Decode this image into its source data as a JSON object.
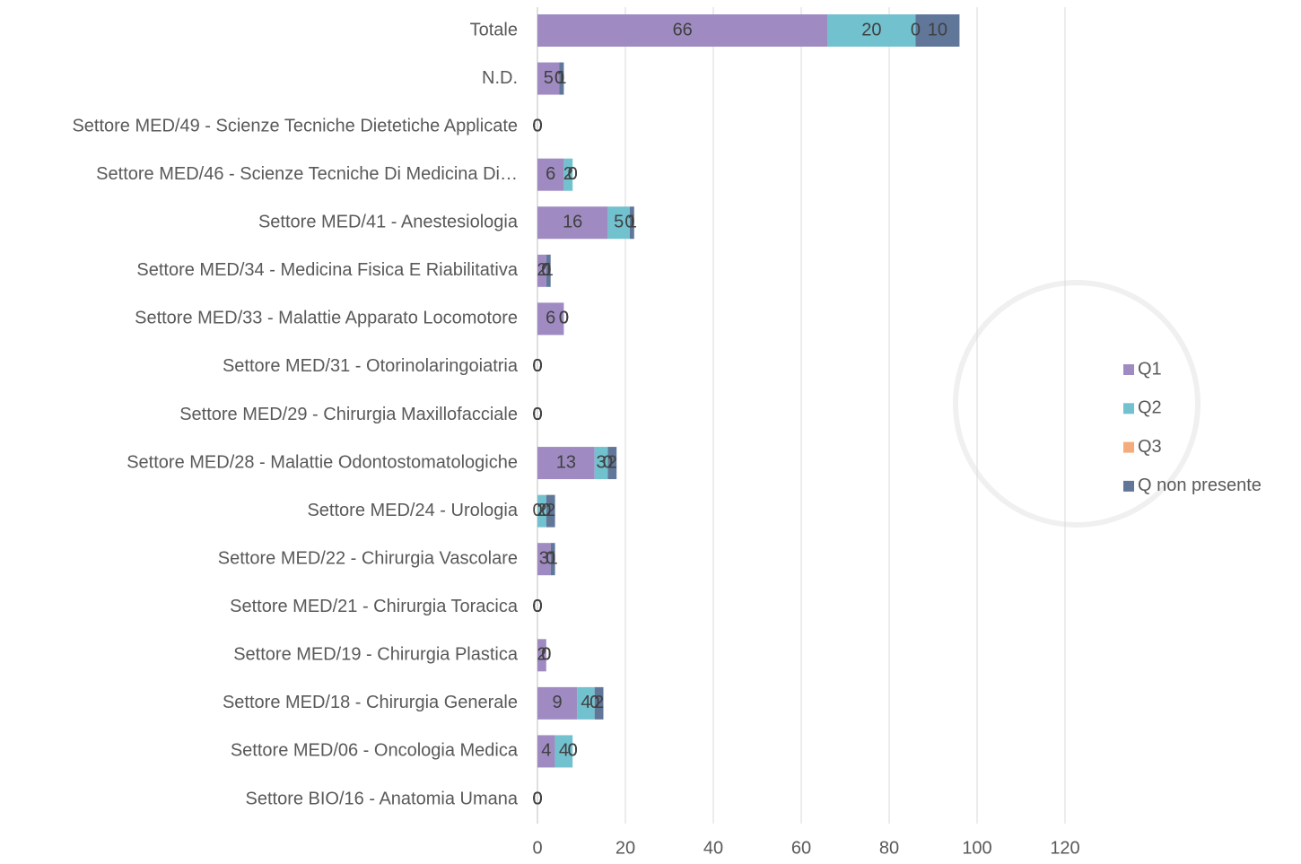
{
  "chart_data": {
    "type": "bar",
    "orientation": "horizontal",
    "stacked": true,
    "categories": [
      "Totale",
      "N.D.",
      "Settore MED/49 - Scienze Tecniche Dietetiche Applicate",
      "Settore MED/46 - Scienze Tecniche Di Medicina Di…",
      "Settore MED/41 - Anestesiologia",
      "Settore MED/34 - Medicina Fisica E Riabilitativa",
      "Settore MED/33 - Malattie Apparato Locomotore",
      "Settore MED/31 - Otorinolaringoiatria",
      "Settore MED/29 - Chirurgia Maxillofacciale",
      "Settore MED/28 - Malattie Odontostomatologiche",
      "Settore MED/24 - Urologia",
      "Settore MED/22 - Chirurgia Vascolare",
      "Settore MED/21 - Chirurgia Toracica",
      "Settore MED/19 - Chirurgia Plastica",
      "Settore MED/18 - Chirurgia Generale",
      "Settore MED/06 - Oncologia Medica",
      "Settore BIO/16 - Anatomia Umana"
    ],
    "series": [
      {
        "name": "Q1",
        "color": "#9f8bc2",
        "values": [
          66,
          5,
          0,
          6,
          16,
          2,
          6,
          0,
          0,
          13,
          0,
          3,
          0,
          2,
          9,
          4,
          0
        ]
      },
      {
        "name": "Q2",
        "color": "#72c1cf",
        "values": [
          20,
          0,
          0,
          2,
          5,
          0,
          0,
          0,
          0,
          3,
          2,
          0,
          0,
          0,
          4,
          4,
          0
        ]
      },
      {
        "name": "Q3",
        "color": "#f4ac7c",
        "values": [
          0,
          0,
          0,
          0,
          0,
          0,
          0,
          0,
          0,
          0,
          0,
          0,
          0,
          0,
          0,
          0,
          0
        ]
      },
      {
        "name": "Q non presente",
        "color": "#60779a",
        "values": [
          10,
          1,
          0,
          0,
          1,
          1,
          0,
          0,
          0,
          2,
          2,
          1,
          0,
          0,
          2,
          0,
          0
        ]
      }
    ],
    "xlim": [
      0,
      120
    ],
    "xticks": [
      0,
      20,
      40,
      60,
      80,
      100,
      120
    ],
    "grid": true,
    "legend": "right"
  }
}
